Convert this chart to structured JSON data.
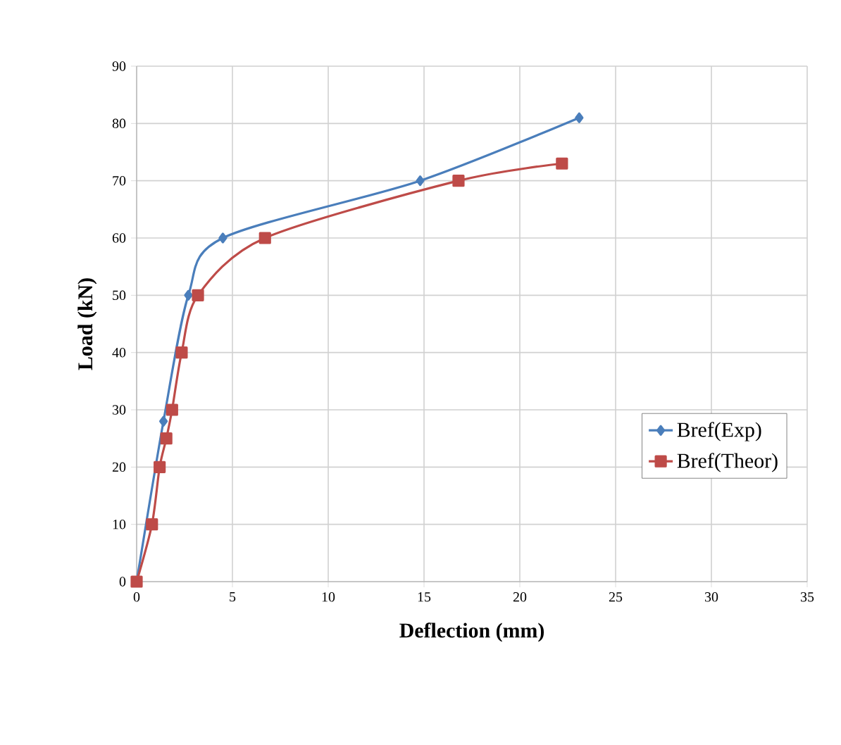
{
  "chart_data": {
    "type": "line",
    "xlabel": "Deflection (mm)",
    "ylabel": "Load (kN)",
    "xlim": [
      0,
      35
    ],
    "ylim": [
      0,
      90
    ],
    "xticks": [
      0,
      5,
      10,
      15,
      20,
      25,
      30,
      35
    ],
    "yticks": [
      0,
      10,
      20,
      30,
      40,
      50,
      60,
      70,
      80,
      90
    ],
    "grid": true,
    "legend": "right",
    "series": [
      {
        "name": "Bref(Exp)",
        "color": "#4a7ebb",
        "marker": "diamond",
        "x": [
          0,
          0.8,
          1.2,
          1.4,
          1.85,
          2.35,
          2.7,
          4.5,
          14.8,
          23.1
        ],
        "values": [
          0,
          null,
          null,
          28,
          null,
          null,
          50,
          60,
          70,
          81
        ]
      },
      {
        "name": "Bref(Theor)",
        "color": "#be4b48",
        "marker": "square",
        "x": [
          0,
          0.8,
          1.2,
          1.55,
          1.85,
          2.35,
          3.2,
          6.7,
          16.8,
          22.2
        ],
        "values": [
          0,
          10,
          20,
          25,
          30,
          40,
          50,
          60,
          70,
          73
        ]
      }
    ]
  }
}
